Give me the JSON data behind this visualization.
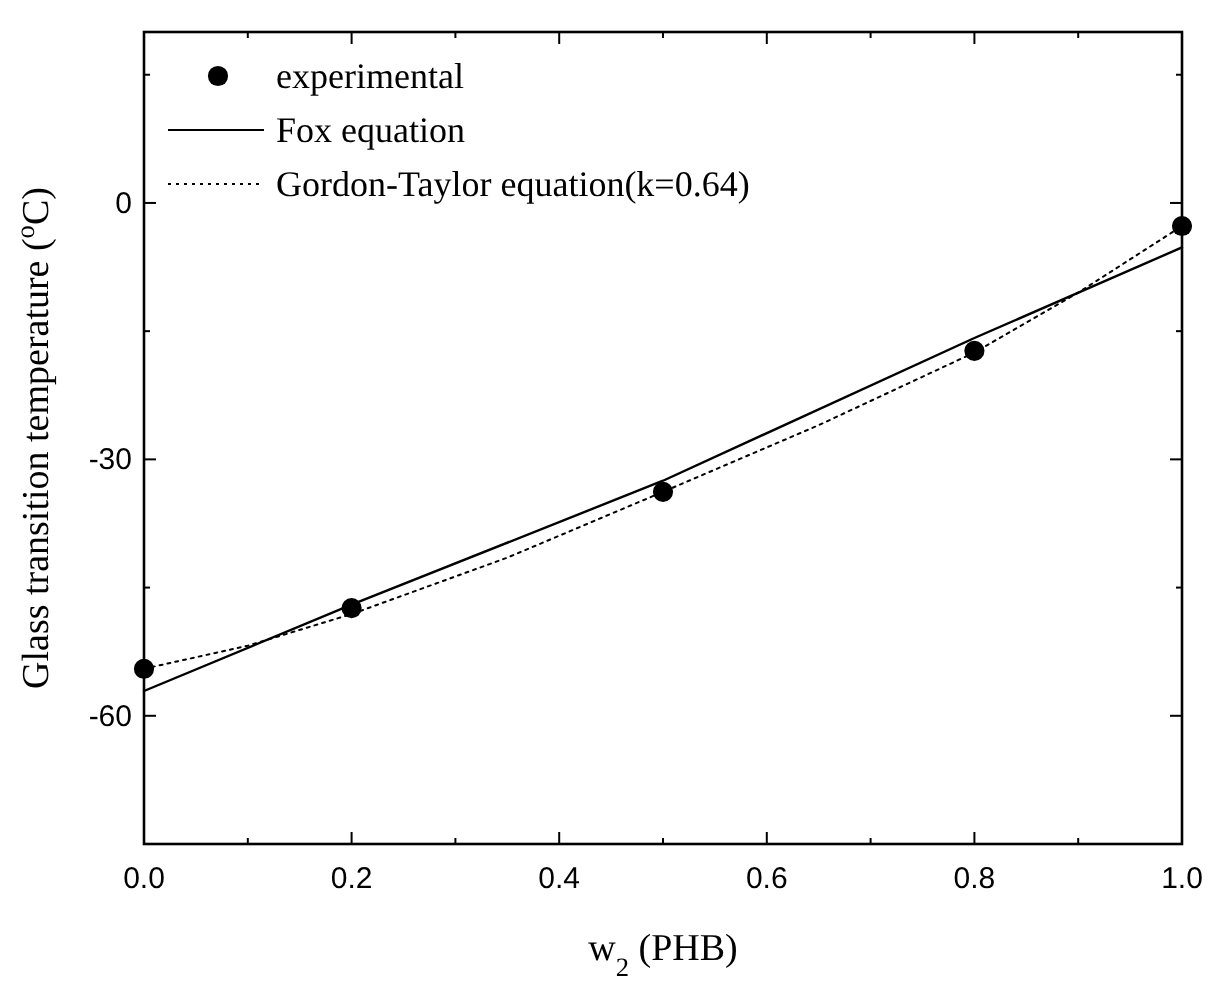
{
  "chart_data": {
    "type": "scatter",
    "xlabel": "w$_{2}$ (PHB)",
    "ylabel": "Glass transition temperature ($^{o}$C)",
    "xlim": [
      0,
      1
    ],
    "ylim": [
      -75,
      20
    ],
    "xticks": [
      {
        "value": 0,
        "label": "0.0"
      },
      {
        "value": 0.1,
        "label": null
      },
      {
        "value": 0.2,
        "label": "0.2"
      },
      {
        "value": 0.3,
        "label": null
      },
      {
        "value": 0.4,
        "label": "0.4"
      },
      {
        "value": 0.5,
        "label": null
      },
      {
        "value": 0.6,
        "label": "0.6"
      },
      {
        "value": 0.7,
        "label": null
      },
      {
        "value": 0.8,
        "label": "0.8"
      },
      {
        "value": 0.9,
        "label": null
      },
      {
        "value": 1,
        "label": "1.0"
      }
    ],
    "yticks": [
      {
        "value": -75,
        "label": null
      },
      -60,
      {
        "value": -45,
        "label": null
      },
      -30,
      {
        "value": -15,
        "label": null
      },
      0,
      {
        "value": 15,
        "label": null
      }
    ],
    "legend": "top left",
    "grid": false,
    "series": [
      {
        "name": "experimental",
        "marker": "circle",
        "color": "#000000",
        "x": [
          0,
          0.2,
          0.5,
          0.8,
          1
        ],
        "values": [
          -54.5,
          -47.4,
          -33.8,
          -17.3,
          -2.7
        ]
      },
      {
        "name": "Fox equation",
        "type": "line",
        "line_style": "solid",
        "color": "#000000",
        "x": [
          0,
          0.2,
          0.5,
          0.8,
          1
        ],
        "values": [
          -57.1,
          -47,
          -32.5,
          -15.8,
          -5.2
        ]
      },
      {
        "name": "Gordon-Taylor equation(k=0.64)",
        "type": "line",
        "line_style": "dotted",
        "color": "#000000",
        "x": [
          0,
          0.1,
          0.2,
          0.35,
          0.5,
          0.65,
          0.8,
          0.9,
          1
        ],
        "values": [
          -54.5,
          -51.8,
          -48.1,
          -41.5,
          -33.8,
          -26,
          -17.5,
          -10.5,
          -2.7
        ]
      }
    ]
  }
}
